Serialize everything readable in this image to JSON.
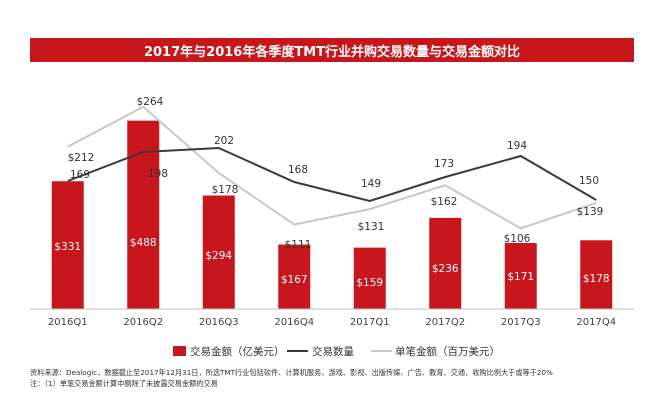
{
  "chart_data": {
    "type": "bar",
    "title": "2017年与2016年各季度TMT行业并购交易数量与交易金额对比",
    "categories": [
      "2016Q1",
      "2016Q2",
      "2016Q3",
      "2016Q4",
      "2017Q1",
      "2017Q2",
      "2017Q3",
      "2017Q4"
    ],
    "series": [
      {
        "name": "交易金额（亿美元）",
        "kind": "bar",
        "values": [
          331,
          488,
          294,
          167,
          159,
          236,
          171,
          178
        ],
        "labels": [
          "$331",
          "$488",
          "$294",
          "$167",
          "$159",
          "$236",
          "$171",
          "$178"
        ]
      },
      {
        "name": "交易数量",
        "kind": "line",
        "values": [
          169,
          198,
          202,
          168,
          149,
          173,
          194,
          150
        ],
        "labels": [
          "169",
          "198",
          "202",
          "168",
          "149",
          "173",
          "194",
          "150"
        ]
      },
      {
        "name": "单笔金额（百万美元）",
        "kind": "line",
        "values": [
          212,
          264,
          178,
          111,
          131,
          162,
          106,
          139
        ],
        "labels": [
          "$212",
          "$264",
          "$178",
          "$111",
          "$131",
          "$162",
          "$106",
          "$139"
        ]
      }
    ],
    "colors": {
      "bar": "#c8161d",
      "count_line": "#3a3a3a",
      "single_line": "#c8c8c8",
      "title_bg": "#c8161d"
    }
  },
  "footnotes": {
    "source": "资料来源：Dealogic，数据截止至2017年12月31日，所选TMT行业包括软件、计算机服务、游戏、影视、出版传媒、广告、教育、交通，收购比例大于或等于20%",
    "note": "注：（1）单笔交易金额计算中剔除了未披露交易金额的交易"
  }
}
